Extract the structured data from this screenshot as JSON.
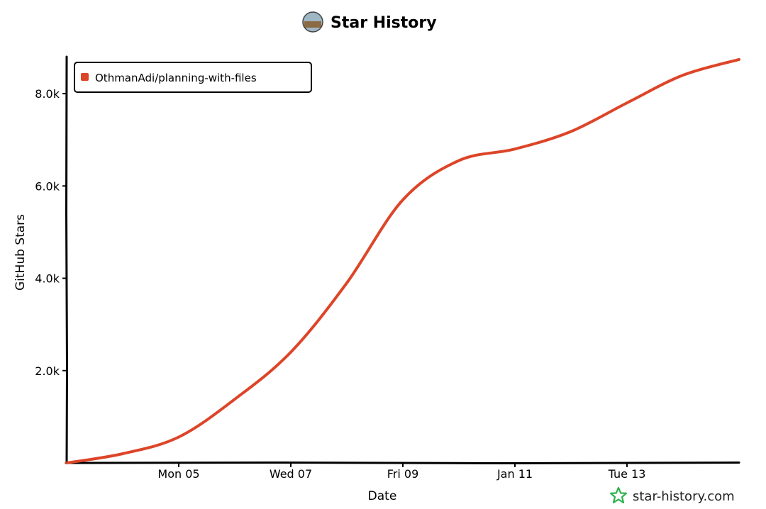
{
  "chart_data": {
    "type": "line",
    "title": "Star History",
    "xlabel": "Date",
    "ylabel": "GitHub Stars",
    "x_ticks": [
      "Mon 05",
      "Wed 07",
      "Fri 09",
      "Jan 11",
      "Tue 13"
    ],
    "y_ticks": [
      "2.0k",
      "4.0k",
      "6.0k",
      "8.0k"
    ],
    "y_tick_values": [
      2000,
      4000,
      6000,
      8000
    ],
    "ylim": [
      0,
      8800
    ],
    "grid": false,
    "legend": {
      "placement": "top-left"
    },
    "series": [
      {
        "name": "OthmanAdi/planning-with-files",
        "color": "#dd4528",
        "points": [
          [
            "Jan 03",
            0
          ],
          [
            "Jan 04",
            200
          ],
          [
            "Jan 05",
            560
          ],
          [
            "Jan 06",
            1380
          ],
          [
            "Jan 07",
            2400
          ],
          [
            "Jan 08",
            3900
          ],
          [
            "Jan 09",
            5700
          ],
          [
            "Jan 10",
            6550
          ],
          [
            "Jan 11",
            6800
          ],
          [
            "Jan 12",
            7180
          ],
          [
            "Jan 13",
            7800
          ],
          [
            "Jan 14",
            8400
          ],
          [
            "Jan 15",
            8740
          ]
        ]
      }
    ]
  },
  "header": {
    "avatar_icon": "avatar-icon"
  },
  "watermark": {
    "text": "star-history.com",
    "icon": "star-icon",
    "icon_color": "#2bb24c"
  }
}
